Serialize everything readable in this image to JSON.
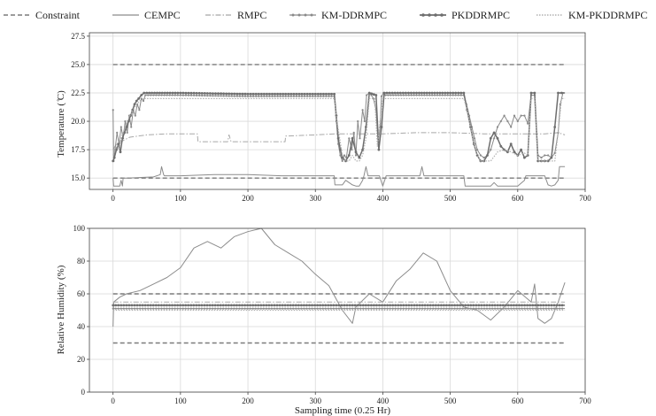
{
  "legend": {
    "items": [
      {
        "label": "Constraint",
        "style": "constraint"
      },
      {
        "label": "CEMPC",
        "style": "cempc"
      },
      {
        "label": "RMPC",
        "style": "rmpc"
      },
      {
        "label": "KM-DDRMPC",
        "style": "kmddrmpc"
      },
      {
        "label": "PKDDRMPC",
        "style": "pkddrmpc"
      },
      {
        "label": "KM-PKDDRMPC",
        "style": "kmpkddrmpc"
      }
    ]
  },
  "colors": {
    "constraint": "#7a7a7a",
    "cempc": "#8c8c8c",
    "rmpc": "#a8a8a8",
    "kmddrmpc": "#8a8a8a",
    "pkddrmpc": "#6e6e6e",
    "kmpkddrmpc": "#b0b0b0",
    "grid": "#d9d9d9",
    "frame": "#444444"
  },
  "chart_data": [
    {
      "type": "line",
      "title": "",
      "xlabel": "",
      "ylabel": "Temperature ( ̊C)",
      "xlim": [
        -35,
        700
      ],
      "ylim": [
        14.0,
        27.8
      ],
      "xticks": [
        0,
        100,
        200,
        300,
        400,
        500,
        600,
        700
      ],
      "yticks": [
        15.0,
        17.5,
        20.0,
        22.5,
        25.0,
        27.5
      ],
      "ytick_labels": [
        "15.0",
        "17.5",
        "20.0",
        "22.5",
        "25.0",
        "27.5"
      ],
      "grid": true,
      "series": [
        {
          "name": "Constraint",
          "style": "constraint",
          "x": [
            0,
            670
          ],
          "y": [
            25,
            25
          ]
        },
        {
          "name": "Constraint",
          "style": "constraint",
          "x": [
            0,
            670
          ],
          "y": [
            15,
            15
          ]
        },
        {
          "name": "CEMPC",
          "style": "cempc",
          "x": [
            0,
            1,
            10,
            12,
            14,
            15,
            16,
            20,
            60,
            70,
            72,
            75,
            76,
            100,
            150,
            200,
            250,
            300,
            328,
            329,
            340,
            345,
            355,
            360,
            365,
            370,
            372,
            375,
            378,
            380,
            395,
            400,
            405,
            450,
            455,
            458,
            461,
            464,
            500,
            520,
            522,
            560,
            565,
            570,
            600,
            610,
            612,
            640,
            645,
            650,
            655,
            660,
            662,
            670
          ],
          "y": [
            15.0,
            14.3,
            14.3,
            14.8,
            14.3,
            15.0,
            15.0,
            15.0,
            15.1,
            15.3,
            16.0,
            15.3,
            15.2,
            15.2,
            15.3,
            15.3,
            15.2,
            15.2,
            15.2,
            14.4,
            14.4,
            14.8,
            14.4,
            14.3,
            14.3,
            14.8,
            15.2,
            16.0,
            15.2,
            15.2,
            15.2,
            14.3,
            15.2,
            15.2,
            15.2,
            16.0,
            15.2,
            15.2,
            15.2,
            15.2,
            14.3,
            14.3,
            14.6,
            14.3,
            14.3,
            14.8,
            15.2,
            15.2,
            14.4,
            14.3,
            14.4,
            14.8,
            16.0,
            16.0
          ]
        },
        {
          "name": "RMPC",
          "style": "rmpc",
          "x": [
            0,
            5,
            15,
            25,
            50,
            80,
            100,
            125,
            126,
            160,
            170,
            172,
            175,
            250,
            255,
            256,
            300,
            330,
            360,
            400,
            450,
            500,
            550,
            600,
            640,
            660,
            670
          ],
          "y": [
            17.5,
            18.0,
            18.3,
            18.6,
            18.8,
            18.9,
            18.9,
            18.9,
            18.2,
            18.2,
            18.2,
            18.8,
            18.2,
            18.2,
            18.2,
            18.7,
            18.8,
            18.9,
            18.9,
            18.9,
            19.0,
            19.0,
            18.9,
            18.9,
            18.9,
            19.0,
            18.8
          ]
        },
        {
          "name": "KM-DDRMPC",
          "style": "kmddrmpc",
          "x": [
            0,
            1,
            3,
            6,
            9,
            12,
            15,
            18,
            21,
            24,
            27,
            30,
            33,
            36,
            39,
            42,
            45,
            48,
            100,
            200,
            300,
            328,
            331,
            334,
            337,
            340,
            343,
            346,
            350,
            354,
            357,
            360,
            363,
            366,
            370,
            373,
            376,
            380,
            383,
            386,
            390,
            393,
            396,
            398,
            401,
            404,
            450,
            500,
            520,
            524,
            528,
            532,
            536,
            540,
            545,
            550,
            555,
            560,
            565,
            570,
            575,
            580,
            585,
            590,
            595,
            600,
            605,
            610,
            615,
            620,
            625,
            630,
            635,
            640,
            645,
            650,
            655,
            660,
            663,
            667,
            670
          ],
          "y": [
            21.0,
            16.5,
            17.5,
            19.0,
            18.0,
            19.5,
            18.5,
            20.0,
            19.0,
            20.5,
            19.5,
            21.0,
            20.5,
            21.5,
            21.0,
            22.0,
            21.8,
            22.3,
            22.3,
            22.2,
            22.2,
            22.2,
            20.0,
            18.0,
            17.0,
            16.5,
            17.0,
            16.8,
            18.5,
            17.5,
            19.0,
            17.0,
            20.0,
            18.5,
            21.0,
            20.0,
            22.3,
            22.5,
            22.3,
            22.0,
            21.0,
            18.0,
            19.5,
            22.2,
            22.5,
            22.3,
            22.3,
            22.3,
            22.3,
            21.5,
            20.5,
            19.5,
            18.5,
            17.5,
            17.0,
            16.8,
            17.0,
            17.5,
            18.5,
            19.5,
            20.0,
            20.5,
            20.0,
            19.5,
            20.5,
            20.0,
            20.5,
            20.5,
            19.8,
            22.3,
            22.3,
            17.0,
            16.8,
            17.0,
            17.0,
            16.8,
            17.2,
            19.0,
            21.5,
            22.5,
            22.5
          ]
        },
        {
          "name": "PKDDRMPC",
          "style": "pkddrmpc",
          "x": [
            0,
            2,
            5,
            8,
            11,
            14,
            17,
            20,
            23,
            26,
            29,
            32,
            35,
            38,
            42,
            46,
            50,
            100,
            200,
            300,
            328,
            331,
            334,
            337,
            340,
            345,
            350,
            355,
            360,
            365,
            370,
            375,
            380,
            390,
            394,
            398,
            402,
            450,
            500,
            520,
            525,
            530,
            535,
            540,
            545,
            550,
            555,
            560,
            565,
            570,
            575,
            580,
            585,
            590,
            595,
            600,
            605,
            610,
            615,
            620,
            625,
            630,
            635,
            640,
            645,
            650,
            655,
            660,
            665,
            670
          ],
          "y": [
            16.5,
            16.8,
            17.5,
            18.0,
            17.3,
            18.5,
            19.0,
            19.5,
            20.0,
            20.5,
            21.0,
            21.5,
            21.8,
            22.0,
            22.3,
            22.5,
            22.5,
            22.5,
            22.4,
            22.4,
            22.4,
            20.5,
            18.5,
            17.5,
            16.8,
            16.5,
            17.0,
            18.5,
            17.3,
            16.8,
            17.5,
            19.5,
            22.5,
            22.3,
            17.5,
            19.5,
            22.5,
            22.5,
            22.5,
            22.5,
            21.0,
            19.5,
            18.0,
            17.0,
            16.5,
            16.5,
            17.0,
            18.5,
            19.0,
            18.5,
            17.8,
            17.5,
            17.3,
            18.0,
            17.3,
            17.0,
            17.5,
            16.8,
            17.0,
            22.5,
            22.5,
            16.5,
            16.5,
            16.5,
            16.5,
            16.8,
            19.5,
            22.5,
            22.5,
            22.5
          ]
        },
        {
          "name": "KM-PKDDRMPC",
          "style": "kmpkddrmpc",
          "x": [
            0,
            3,
            6,
            9,
            12,
            15,
            18,
            21,
            25,
            30,
            35,
            40,
            45,
            50,
            100,
            200,
            300,
            328,
            332,
            336,
            340,
            345,
            350,
            355,
            360,
            365,
            370,
            375,
            380,
            388,
            392,
            396,
            400,
            404,
            450,
            500,
            520,
            525,
            530,
            535,
            540,
            545,
            550,
            560,
            570,
            580,
            590,
            600,
            610,
            615,
            620,
            625,
            630,
            640,
            650,
            655,
            660,
            665,
            670
          ],
          "y": [
            17.0,
            17.5,
            18.0,
            17.5,
            18.5,
            19.0,
            19.5,
            20.0,
            20.5,
            21.0,
            21.5,
            21.8,
            22.0,
            22.0,
            22.0,
            22.0,
            22.0,
            22.0,
            20.0,
            18.5,
            17.0,
            16.5,
            16.5,
            17.0,
            16.5,
            16.5,
            17.0,
            18.5,
            22.0,
            22.0,
            17.8,
            20.0,
            22.0,
            22.0,
            22.0,
            22.0,
            22.0,
            21.0,
            19.5,
            18.0,
            17.0,
            16.5,
            16.5,
            16.5,
            17.3,
            17.5,
            17.3,
            17.0,
            17.2,
            17.0,
            22.0,
            22.0,
            16.5,
            16.5,
            16.5,
            16.5,
            19.0,
            22.0,
            22.0
          ]
        }
      ]
    },
    {
      "type": "line",
      "title": "",
      "xlabel": "Sampling time (0.25 Hr)",
      "ylabel": "Relative Humidity (%)",
      "xlim": [
        -35,
        700
      ],
      "ylim": [
        0,
        100
      ],
      "xticks": [
        0,
        100,
        200,
        300,
        400,
        500,
        600,
        700
      ],
      "yticks": [
        0,
        20,
        40,
        60,
        80,
        100
      ],
      "ytick_labels": [
        "0",
        "20",
        "40",
        "60",
        "80",
        "100"
      ],
      "grid": true,
      "series": [
        {
          "name": "Constraint",
          "style": "constraint",
          "x": [
            0,
            670
          ],
          "y": [
            60,
            60
          ]
        },
        {
          "name": "Constraint",
          "style": "constraint",
          "x": [
            0,
            670
          ],
          "y": [
            30,
            30
          ]
        },
        {
          "name": "CEMPC",
          "style": "cempc",
          "x": [
            0,
            1,
            10,
            20,
            40,
            60,
            80,
            100,
            120,
            140,
            160,
            180,
            200,
            220,
            240,
            260,
            280,
            300,
            320,
            340,
            355,
            360,
            380,
            400,
            420,
            440,
            460,
            480,
            500,
            520,
            540,
            560,
            580,
            600,
            620,
            625,
            630,
            640,
            650,
            660,
            670
          ],
          "y": [
            40,
            55,
            58,
            60,
            62,
            66,
            70,
            76,
            88,
            92,
            88,
            95,
            98,
            100,
            90,
            85,
            80,
            72,
            65,
            50,
            42,
            52,
            60,
            55,
            68,
            75,
            85,
            80,
            62,
            52,
            50,
            44,
            52,
            62,
            55,
            66,
            45,
            42,
            45,
            55,
            67
          ]
        },
        {
          "name": "RMPC",
          "style": "rmpc",
          "x": [
            0,
            670
          ],
          "y": [
            55,
            55
          ]
        },
        {
          "name": "KM-DDRMPC",
          "style": "kmddrmpc",
          "x": [
            0,
            670
          ],
          "y": [
            51,
            51
          ]
        },
        {
          "name": "PKDDRMPC",
          "style": "pkddrmpc",
          "x": [
            0,
            670
          ],
          "y": [
            53,
            53
          ]
        },
        {
          "name": "KM-PKDDRMPC",
          "style": "kmpkddrmpc",
          "x": [
            0,
            670
          ],
          "y": [
            50,
            50
          ]
        }
      ]
    }
  ]
}
